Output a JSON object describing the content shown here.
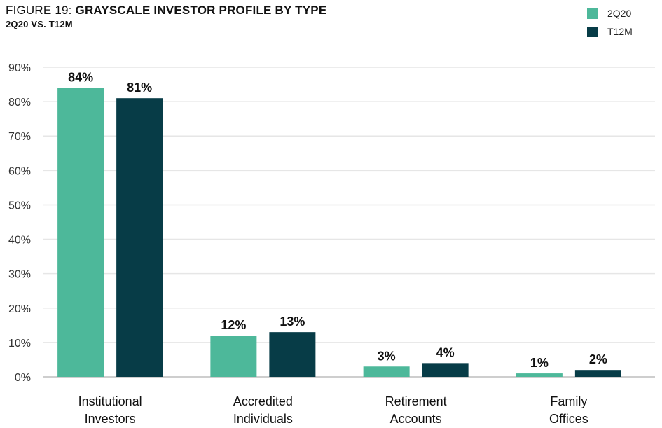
{
  "title": {
    "prefix": "FIGURE 19: ",
    "main": "GRAYSCALE INVESTOR PROFILE BY TYPE",
    "subtitle": "2Q20 VS. T12M"
  },
  "chart_data": {
    "type": "bar",
    "categories": [
      [
        "Institutional",
        "Investors"
      ],
      [
        "Accredited",
        "Individuals"
      ],
      [
        "Retirement",
        "Accounts"
      ],
      [
        "Family",
        "Offices"
      ]
    ],
    "series": [
      {
        "name": "2Q20",
        "color": "#4db89a",
        "values": [
          84,
          12,
          3,
          1
        ],
        "labels": [
          "84%",
          "12%",
          "3%",
          "1%"
        ]
      },
      {
        "name": "T12M",
        "color": "#073c47",
        "values": [
          81,
          13,
          4,
          2
        ],
        "labels": [
          "81%",
          "13%",
          "4%",
          "2%"
        ]
      }
    ],
    "ylim": [
      0,
      90
    ],
    "yticks": [
      0,
      10,
      20,
      30,
      40,
      50,
      60,
      70,
      80,
      90
    ],
    "ytick_labels": [
      "0%",
      "10%",
      "20%",
      "30%",
      "40%",
      "50%",
      "60%",
      "70%",
      "80%",
      "90%"
    ],
    "grid": true,
    "legend_position": "top-right"
  }
}
